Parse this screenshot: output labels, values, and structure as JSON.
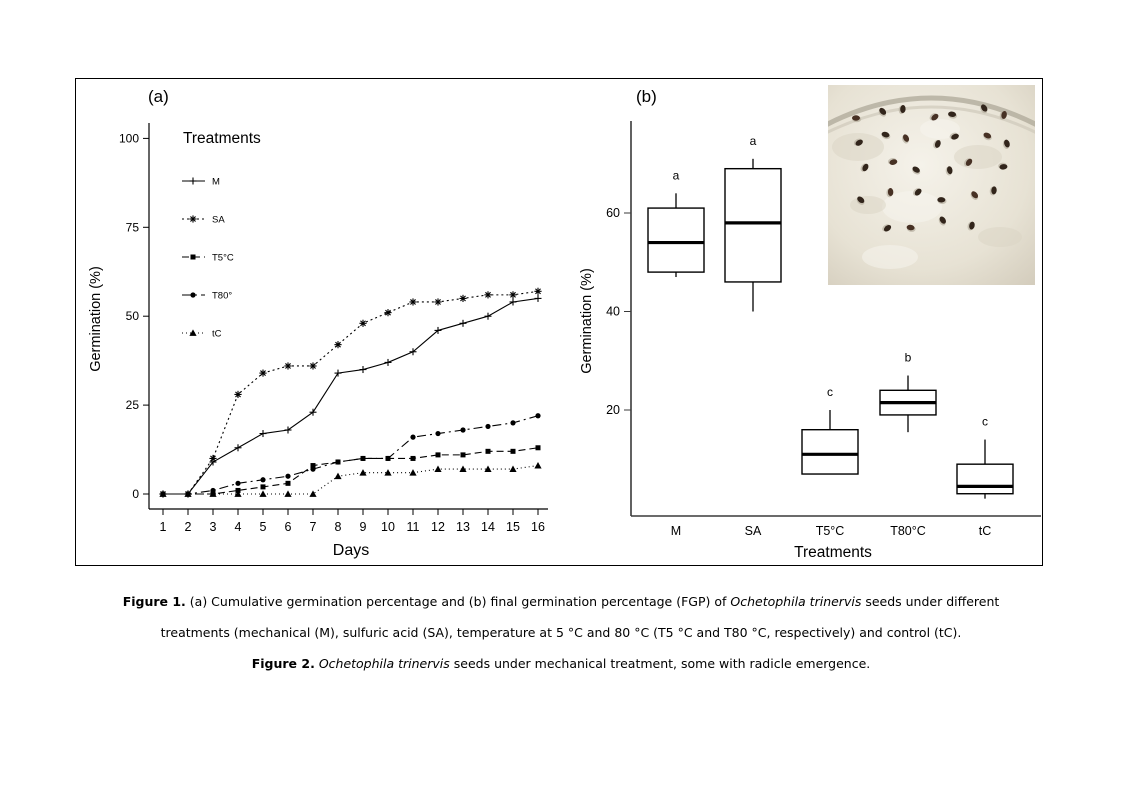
{
  "chart_data": [
    {
      "id": "panel_a",
      "type": "line",
      "panel_label": "(a)",
      "xlabel": "Days",
      "ylabel": "Germination (%)",
      "legend_title": "Treatments",
      "legend_position": "top-left-inside",
      "grid": false,
      "x": [
        1,
        2,
        3,
        4,
        5,
        6,
        7,
        8,
        9,
        10,
        11,
        12,
        13,
        14,
        15,
        16
      ],
      "ylim": [
        0,
        100
      ],
      "yticks": [
        0,
        25,
        50,
        75,
        100
      ],
      "series": [
        {
          "name": "M",
          "marker": "plus",
          "dash": "",
          "values": [
            0,
            0,
            9,
            13,
            17,
            18,
            23,
            34,
            35,
            37,
            40,
            46,
            48,
            50,
            54,
            55
          ]
        },
        {
          "name": "SA",
          "marker": "asterisk",
          "dash": "2,3",
          "values": [
            0,
            0,
            10,
            28,
            34,
            36,
            36,
            42,
            48,
            51,
            54,
            54,
            55,
            56,
            56,
            57
          ]
        },
        {
          "name": "T5°C",
          "marker": "square",
          "dash": "7,4",
          "values": [
            0,
            0,
            0,
            1,
            2,
            3,
            8,
            9,
            10,
            10,
            10,
            11,
            11,
            12,
            12,
            13
          ]
        },
        {
          "name": "T80°",
          "marker": "circle",
          "dash": "9,4,2,4",
          "values": [
            0,
            0,
            1,
            3,
            4,
            5,
            7,
            9,
            10,
            10,
            16,
            17,
            18,
            19,
            20,
            22
          ]
        },
        {
          "name": "tC",
          "marker": "triangle",
          "dash": "1,3",
          "values": [
            0,
            0,
            0,
            0,
            0,
            0,
            0,
            5,
            6,
            6,
            6,
            7,
            7,
            7,
            7,
            8
          ]
        }
      ]
    },
    {
      "id": "panel_b",
      "type": "boxplot",
      "panel_label": "(b)",
      "xlabel": "Treatments",
      "ylabel": "Germination (%)",
      "grid": false,
      "ylim": [
        0,
        78
      ],
      "yticks": [
        20,
        40,
        60
      ],
      "categories": [
        "M",
        "SA",
        "T5°C",
        "T80°C",
        "tC"
      ],
      "boxes": [
        {
          "label": "M",
          "letter": "a",
          "whisker_low": 47,
          "q1": 48,
          "median": 54,
          "q3": 61,
          "whisker_high": 64
        },
        {
          "label": "SA",
          "letter": "a",
          "whisker_low": 40,
          "q1": 46,
          "median": 58,
          "q3": 69,
          "whisker_high": 71
        },
        {
          "label": "T5°C",
          "letter": "c",
          "whisker_low": 7,
          "q1": 7,
          "median": 11,
          "q3": 16,
          "whisker_high": 20
        },
        {
          "label": "T80°C",
          "letter": "b",
          "whisker_low": 15.5,
          "q1": 19,
          "median": 21.5,
          "q3": 24,
          "whisker_high": 27
        },
        {
          "label": "tC",
          "letter": "c",
          "whisker_low": 2,
          "q1": 3,
          "median": 4.5,
          "q3": 9,
          "whisker_high": 14
        }
      ]
    }
  ],
  "inset_photo": {
    "description": "Petri dish with seeds on wet cotton",
    "seed_count": 30
  },
  "caption": {
    "line1_segments": [
      {
        "text": "Figure 1.",
        "bold": true
      },
      {
        "text": " (a) Cumulative germination percentage and (b) final germination percentage (FGP) of "
      },
      {
        "text": "Ochetophila trinervis",
        "italic": true
      },
      {
        "text": " seeds under different"
      }
    ],
    "line2_segments": [
      {
        "text": "treatments (mechanical (M), sulfuric acid (SA), temperature at 5 °C and 80 °C (T5 °C and T80 °C, respectively) and control (tC)."
      }
    ],
    "line3_segments": [
      {
        "text": "Figure 2.",
        "bold": true
      },
      {
        "text": " "
      },
      {
        "text": "Ochetophila trinervis",
        "italic": true
      },
      {
        "text": " seeds under mechanical treatment, some with radicle emergence."
      }
    ]
  }
}
